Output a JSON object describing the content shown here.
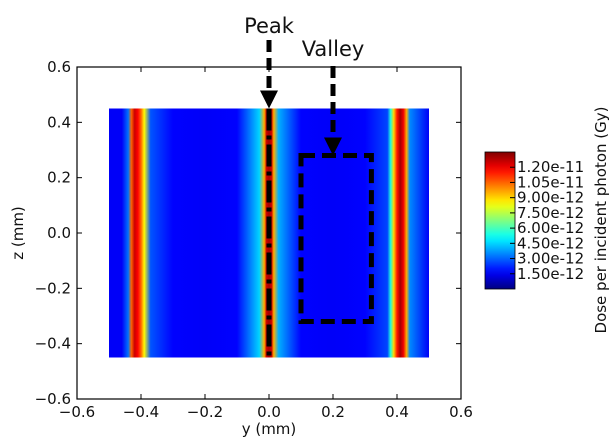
{
  "chart_data": {
    "type": "heatmap",
    "title": "",
    "xlabel": "y (mm)",
    "ylabel": "z (mm)",
    "xlim": [
      -0.6,
      0.6
    ],
    "ylim": [
      -0.6,
      0.6
    ],
    "xticks": [
      "−0.6",
      "−0.4",
      "−0.2",
      "0.0",
      "0.2",
      "0.4",
      "0.6"
    ],
    "xtick_values": [
      -0.6,
      -0.4,
      -0.2,
      0.0,
      0.2,
      0.4,
      0.6
    ],
    "yticks": [
      "0.6",
      "0.4",
      "0.2",
      "0.0",
      "−0.2",
      "−0.4",
      "−0.6"
    ],
    "ytick_values": [
      0.6,
      0.4,
      0.2,
      0.0,
      -0.2,
      -0.4,
      -0.6
    ],
    "dose_extent": {
      "y": [
        -0.5,
        0.5
      ],
      "z": [
        -0.45,
        0.45
      ]
    },
    "grid": false,
    "profile_y": [
      -0.5,
      -0.46,
      -0.44,
      -0.43,
      -0.42,
      -0.41,
      -0.4,
      -0.39,
      -0.37,
      -0.3,
      -0.2,
      -0.1,
      -0.03,
      -0.015,
      -0.008,
      0.0,
      0.008,
      0.015,
      0.03,
      0.1,
      0.2,
      0.3,
      0.37,
      0.38,
      0.39,
      0.4,
      0.41,
      0.42,
      0.43,
      0.44,
      0.5
    ],
    "profile_dose": [
      1.6e-12,
      1.6e-12,
      3.2e-12,
      1.05e-11,
      1.25e-11,
      1.18e-11,
      1.05e-11,
      8.5e-12,
      2.8e-12,
      1.7e-12,
      1.6e-12,
      1.7e-12,
      4.5e-12,
      9.5e-12,
      1.25e-11,
      1.3e-11,
      1.25e-11,
      9.5e-12,
      4e-12,
      1.7e-12,
      1.6e-12,
      1.7e-12,
      2.6e-12,
      5.5e-12,
      9e-12,
      1.15e-11,
      1.3e-11,
      1.2e-11,
      9.5e-12,
      3.5e-12,
      1.6e-12
    ],
    "colorbar": {
      "title": "Dose per incident photon (Gy)",
      "min": 0,
      "max": 1.35e-11,
      "ticks": [
        1.5e-12,
        3e-12,
        4.5e-12,
        6e-12,
        7.5e-12,
        9e-12,
        1.05e-11,
        1.2e-11
      ],
      "tick_labels": [
        "1.50e-12",
        "3.00e-12",
        "4.50e-12",
        "6.00e-12",
        "7.50e-12",
        "9.00e-12",
        "1.05e-11",
        "1.20e-11"
      ],
      "colormap": "jet"
    },
    "annotations": [
      {
        "text": "Peak",
        "arrow_to": [
          0.0,
          0.45
        ],
        "line": {
          "y": 0.0,
          "z_from": -0.45,
          "z_to": 0.45
        }
      },
      {
        "text": "Valley",
        "arrow_to": [
          0.2,
          0.28
        ],
        "box": {
          "y_from": 0.1,
          "y_to": 0.32,
          "z_from": -0.32,
          "z_to": 0.28
        }
      }
    ]
  },
  "colors": {
    "annotation": "#000000",
    "frame": "#000000"
  }
}
